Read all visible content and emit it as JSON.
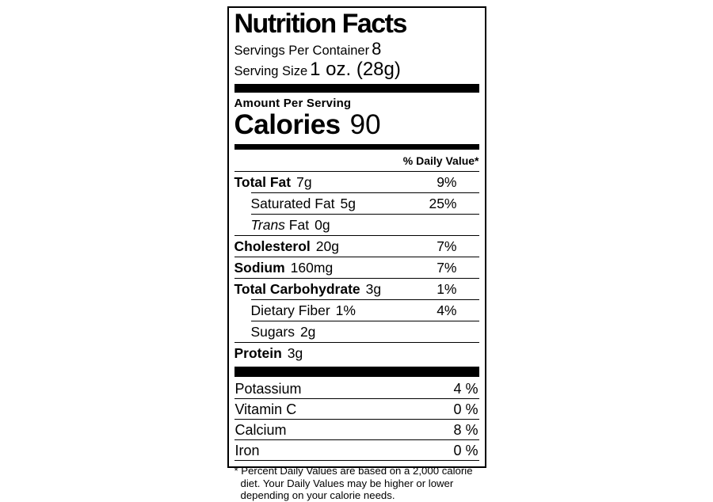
{
  "page": {
    "background_color": "#ffffff",
    "text_color": "#000000"
  },
  "label": {
    "title": "Nutrition Facts",
    "servings": {
      "label": "Servings Per Container",
      "value": "8"
    },
    "serving_size": {
      "label": "Serving Size",
      "value": "1 oz. (28g)"
    },
    "amount_per_serving": "Amount Per Serving",
    "calories": {
      "label": "Calories",
      "value": "90"
    },
    "daily_value_header": "% Daily Value*",
    "nutrients": [
      {
        "name": "Total Fat",
        "amount": "7g",
        "dv": "9%",
        "bold": true,
        "indent": false,
        "sep": "indent"
      },
      {
        "name": "Saturated Fat",
        "amount": "5g",
        "dv": "25%",
        "bold": false,
        "indent": true,
        "sep": "indent"
      },
      {
        "name_lead_italic": "Trans",
        "name": "Fat",
        "amount": "0g",
        "dv": "",
        "bold": false,
        "indent": true,
        "sep": "full"
      },
      {
        "name": "Cholesterol",
        "amount": "20g",
        "dv": "7%",
        "bold": true,
        "indent": false,
        "sep": "full"
      },
      {
        "name": "Sodium",
        "amount": "160mg",
        "dv": "7%",
        "bold": true,
        "indent": false,
        "sep": "full"
      },
      {
        "name": "Total Carbohydrate",
        "amount": "3g",
        "dv": "1%",
        "bold": true,
        "indent": false,
        "sep": "indent"
      },
      {
        "name": "Dietary Fiber",
        "amount": "1%",
        "dv": "4%",
        "bold": false,
        "indent": true,
        "sep": "indent"
      },
      {
        "name": "Sugars",
        "amount": "2g",
        "dv": "",
        "bold": false,
        "indent": true,
        "sep": "full"
      },
      {
        "name": "Protein",
        "amount": "3g",
        "dv": "",
        "bold": true,
        "indent": false,
        "sep": "none"
      }
    ],
    "vitamins": [
      {
        "name": "Potassium",
        "dv": "4 %"
      },
      {
        "name": "Vitamin C",
        "dv": "0 %"
      },
      {
        "name": "Calcium",
        "dv": "8 %"
      },
      {
        "name": "Iron",
        "dv": "0 %"
      }
    ],
    "footnote": "* Percent Daily Values are based on a 2,000 calorie diet. Your Daily Values may be higher or lower depending on your calorie needs."
  }
}
